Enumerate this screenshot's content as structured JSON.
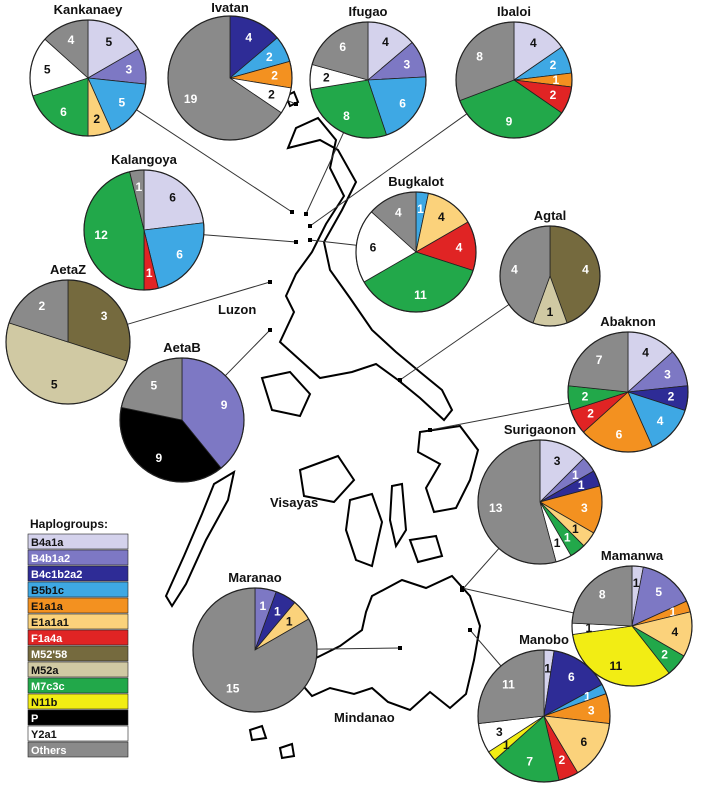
{
  "chart_data": {
    "type": "pie",
    "regions": [
      "Luzon",
      "Visayas",
      "Mindanao"
    ],
    "legend_title": "Haplogroups:",
    "haplogroups": [
      {
        "name": "B4a1a",
        "color": "#d4d2ec"
      },
      {
        "name": "B4b1a2",
        "color": "#7d78c4"
      },
      {
        "name": "B4c1b2a2",
        "color": "#2e2c96"
      },
      {
        "name": "B5b1c",
        "color": "#3ea8e4"
      },
      {
        "name": "E1a1a",
        "color": "#f39120"
      },
      {
        "name": "E1a1a1",
        "color": "#fbd27b"
      },
      {
        "name": "F1a4a",
        "color": "#e02424"
      },
      {
        "name": "M52'58",
        "color": "#756a3e"
      },
      {
        "name": "M52a",
        "color": "#d0c9a3"
      },
      {
        "name": "M7c3c",
        "color": "#22a84a"
      },
      {
        "name": "N11b",
        "color": "#f2ed14"
      },
      {
        "name": "P",
        "color": "#000000"
      },
      {
        "name": "Y2a1",
        "color": "#ffffff"
      },
      {
        "name": "Others",
        "color": "#8a8a8a"
      }
    ],
    "pies": [
      {
        "population": "Kankanaey",
        "slices": [
          {
            "group": "B4a1a",
            "value": 5
          },
          {
            "group": "B4b1a2",
            "value": 3
          },
          {
            "group": "B5b1c",
            "value": 5
          },
          {
            "group": "E1a1a1",
            "value": 2
          },
          {
            "group": "M7c3c",
            "value": 6
          },
          {
            "group": "Y2a1",
            "value": 5
          },
          {
            "group": "Others",
            "value": 4
          }
        ]
      },
      {
        "population": "Ivatan",
        "slices": [
          {
            "group": "B4c1b2a2",
            "value": 4
          },
          {
            "group": "B5b1c",
            "value": 2
          },
          {
            "group": "E1a1a",
            "value": 2
          },
          {
            "group": "Y2a1",
            "value": 2
          },
          {
            "group": "Others",
            "value": 19
          }
        ]
      },
      {
        "population": "Ifugao",
        "slices": [
          {
            "group": "B4a1a",
            "value": 4
          },
          {
            "group": "B4b1a2",
            "value": 3
          },
          {
            "group": "B5b1c",
            "value": 6
          },
          {
            "group": "M7c3c",
            "value": 8
          },
          {
            "group": "Y2a1",
            "value": 2
          },
          {
            "group": "Others",
            "value": 6
          }
        ]
      },
      {
        "population": "Ibaloi",
        "slices": [
          {
            "group": "B4a1a",
            "value": 4
          },
          {
            "group": "B5b1c",
            "value": 2
          },
          {
            "group": "E1a1a",
            "value": 1
          },
          {
            "group": "F1a4a",
            "value": 2
          },
          {
            "group": "M7c3c",
            "value": 9
          },
          {
            "group": "Others",
            "value": 8
          }
        ]
      },
      {
        "population": "Kalangoya",
        "slices": [
          {
            "group": "B4a1a",
            "value": 6
          },
          {
            "group": "B5b1c",
            "value": 6
          },
          {
            "group": "F1a4a",
            "value": 1
          },
          {
            "group": "M7c3c",
            "value": 12
          },
          {
            "group": "Others",
            "value": 1
          }
        ]
      },
      {
        "population": "Bugkalot",
        "slices": [
          {
            "group": "B5b1c",
            "value": 1
          },
          {
            "group": "E1a1a1",
            "value": 4
          },
          {
            "group": "F1a4a",
            "value": 4
          },
          {
            "group": "M7c3c",
            "value": 11
          },
          {
            "group": "Y2a1",
            "value": 6
          },
          {
            "group": "Others",
            "value": 4
          }
        ]
      },
      {
        "population": "Agtal",
        "slices": [
          {
            "group": "M52'58",
            "value": 4
          },
          {
            "group": "M52a",
            "value": 1
          },
          {
            "group": "Others",
            "value": 4
          }
        ]
      },
      {
        "population": "AetaZ",
        "slices": [
          {
            "group": "M52'58",
            "value": 3
          },
          {
            "group": "M52a",
            "value": 5
          },
          {
            "group": "Others",
            "value": 2
          }
        ]
      },
      {
        "population": "AetaB",
        "slices": [
          {
            "group": "B4b1a2",
            "value": 9
          },
          {
            "group": "P",
            "value": 9
          },
          {
            "group": "Others",
            "value": 5
          }
        ]
      },
      {
        "population": "Abaknon",
        "slices": [
          {
            "group": "B4a1a",
            "value": 4
          },
          {
            "group": "B4b1a2",
            "value": 3
          },
          {
            "group": "B4c1b2a2",
            "value": 2
          },
          {
            "group": "B5b1c",
            "value": 4
          },
          {
            "group": "E1a1a",
            "value": 6
          },
          {
            "group": "F1a4a",
            "value": 2
          },
          {
            "group": "M7c3c",
            "value": 2
          },
          {
            "group": "Others",
            "value": 7
          }
        ]
      },
      {
        "population": "Surigaonon",
        "slices": [
          {
            "group": "B4a1a",
            "value": 3
          },
          {
            "group": "B4b1a2",
            "value": 1
          },
          {
            "group": "B4c1b2a2",
            "value": 1
          },
          {
            "group": "E1a1a",
            "value": 3
          },
          {
            "group": "E1a1a1",
            "value": 1
          },
          {
            "group": "M7c3c",
            "value": 1
          },
          {
            "group": "Y2a1",
            "value": 1
          },
          {
            "group": "Others",
            "value": 13
          }
        ]
      },
      {
        "population": "Mamanwa",
        "slices": [
          {
            "group": "B4a1a",
            "value": 1
          },
          {
            "group": "B4b1a2",
            "value": 5
          },
          {
            "group": "E1a1a",
            "value": 1
          },
          {
            "group": "E1a1a1",
            "value": 4
          },
          {
            "group": "M7c3c",
            "value": 2
          },
          {
            "group": "N11b",
            "value": 11
          },
          {
            "group": "Y2a1",
            "value": 1
          },
          {
            "group": "Others",
            "value": 8
          }
        ]
      },
      {
        "population": "Maranao",
        "slices": [
          {
            "group": "B4b1a2",
            "value": 1
          },
          {
            "group": "B4c1b2a2",
            "value": 1
          },
          {
            "group": "E1a1a1",
            "value": 1
          },
          {
            "group": "Others",
            "value": 15
          }
        ]
      },
      {
        "population": "Manobo",
        "slices": [
          {
            "group": "B4a1a",
            "value": 1
          },
          {
            "group": "B4c1b2a2",
            "value": 6
          },
          {
            "group": "B5b1c",
            "value": 1
          },
          {
            "group": "E1a1a",
            "value": 3
          },
          {
            "group": "E1a1a1",
            "value": 6
          },
          {
            "group": "F1a4a",
            "value": 2
          },
          {
            "group": "M7c3c",
            "value": 7
          },
          {
            "group": "N11b",
            "value": 1
          },
          {
            "group": "Y2a1",
            "value": 3
          },
          {
            "group": "Others",
            "value": 11
          }
        ]
      }
    ]
  }
}
